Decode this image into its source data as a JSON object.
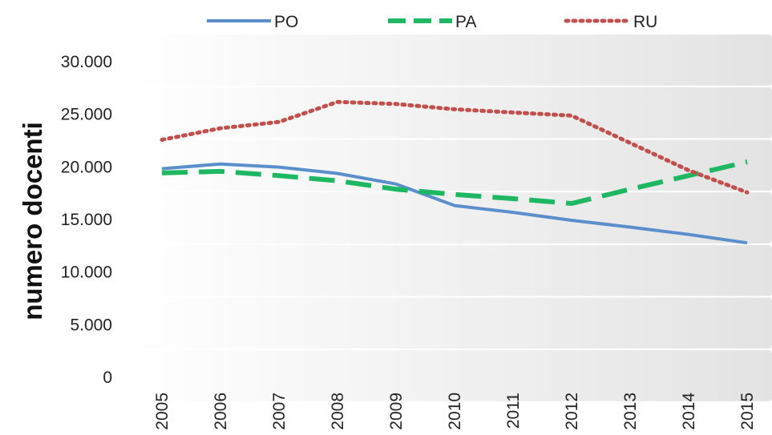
{
  "chart_data": {
    "type": "line",
    "title": "",
    "xlabel": "",
    "ylabel": "numero docenti",
    "x": [
      "2005",
      "2006",
      "2007",
      "2008",
      "2009",
      "2010",
      "2011",
      "2012",
      "2013",
      "2014",
      "2015"
    ],
    "ylim": [
      0,
      30000
    ],
    "yticks": [
      0,
      5000,
      10000,
      15000,
      20000,
      25000,
      30000
    ],
    "ytick_labels": [
      "0",
      "5.000",
      "10.000",
      "15.000",
      "20.000",
      "25.000",
      "30.000"
    ],
    "grid": "alternating bands",
    "legend_position": "top",
    "series": [
      {
        "name": "PO",
        "style": "solid",
        "color": "#5b8fcc",
        "values": [
          19750,
          20200,
          19900,
          19300,
          18300,
          16250,
          15600,
          14850,
          14200,
          13500,
          12700
        ]
      },
      {
        "name": "PA",
        "style": "dashed",
        "color": "#1fb862",
        "values": [
          19350,
          19500,
          19100,
          18600,
          17800,
          17300,
          16900,
          16450,
          17800,
          19100,
          20400
        ]
      },
      {
        "name": "RU",
        "style": "dotted",
        "color": "#c0504d",
        "values": [
          22500,
          23600,
          24200,
          26100,
          25900,
          25400,
          25100,
          24800,
          22200,
          19600,
          17500
        ]
      }
    ]
  }
}
